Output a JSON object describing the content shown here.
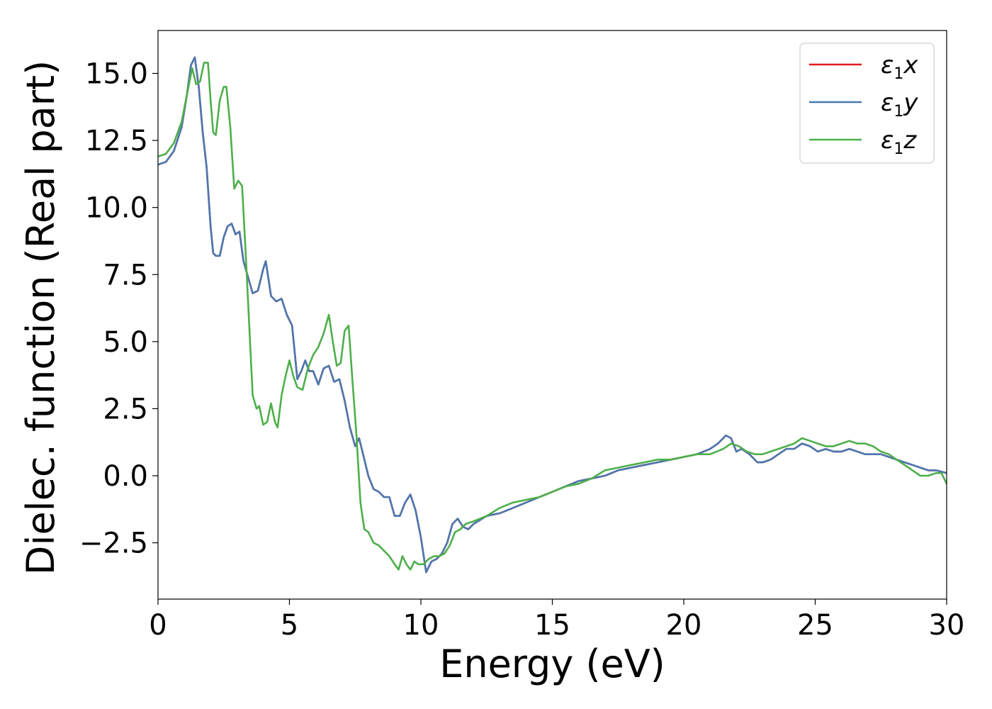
{
  "chart_data": {
    "type": "line",
    "title": "",
    "xlabel": "Energy (eV)",
    "ylabel": "Dielec. function (Real part)",
    "xlim": [
      0,
      30
    ],
    "ylim": [
      -4.6,
      16.6
    ],
    "xticks": [
      0,
      5,
      10,
      15,
      20,
      25,
      30
    ],
    "xtick_labels": [
      "0",
      "5",
      "10",
      "15",
      "20",
      "25",
      "30"
    ],
    "yticks": [
      -2.5,
      0.0,
      2.5,
      5.0,
      7.5,
      10.0,
      12.5,
      15.0
    ],
    "ytick_labels": [
      "−2.5",
      "0.0",
      "2.5",
      "5.0",
      "7.5",
      "10.0",
      "12.5",
      "15.0"
    ],
    "grid": false,
    "legend_position": "top-right",
    "series": [
      {
        "name": "ε₁x",
        "label_main": "ε",
        "label_sub": "1",
        "label_tail": "x",
        "color": "#e41a1c",
        "x": [
          0,
          0.3,
          0.6,
          0.9,
          1.1,
          1.25,
          1.4,
          1.55,
          1.7,
          1.85,
          2.0,
          2.1,
          2.2,
          2.35,
          2.5,
          2.65,
          2.8,
          2.95,
          3.1,
          3.25,
          3.4,
          3.6,
          3.8,
          4.0,
          4.1,
          4.3,
          4.5,
          4.7,
          4.9,
          5.1,
          5.3,
          5.45,
          5.6,
          5.75,
          5.9,
          6.1,
          6.3,
          6.5,
          6.7,
          6.9,
          7.1,
          7.3,
          7.5,
          7.65,
          7.8,
          8.0,
          8.2,
          8.4,
          8.6,
          8.8,
          9.0,
          9.2,
          9.4,
          9.6,
          9.8,
          10.0,
          10.2,
          10.4,
          10.6,
          10.8,
          11.0,
          11.2,
          11.4,
          11.6,
          11.8,
          12.0,
          12.5,
          13.0,
          13.5,
          14.0,
          14.5,
          15.0,
          15.5,
          16.0,
          16.5,
          17.0,
          17.5,
          18.0,
          18.5,
          19.0,
          19.5,
          20.0,
          20.5,
          21.0,
          21.3,
          21.6,
          21.8,
          22.0,
          22.2,
          22.5,
          22.8,
          23.0,
          23.3,
          23.6,
          23.9,
          24.2,
          24.5,
          24.8,
          25.1,
          25.4,
          25.7,
          26.0,
          26.3,
          26.6,
          26.9,
          27.2,
          27.5,
          27.8,
          28.1,
          28.4,
          28.7,
          29.0,
          29.3,
          29.6,
          30.0
        ],
        "y": [
          11.6,
          11.7,
          12.1,
          13.0,
          14.2,
          15.3,
          15.6,
          14.5,
          12.8,
          11.5,
          9.3,
          8.3,
          8.2,
          8.2,
          8.9,
          9.3,
          9.4,
          9.0,
          9.1,
          8.0,
          7.5,
          6.8,
          6.9,
          7.7,
          8.0,
          6.7,
          6.5,
          6.6,
          6.0,
          5.6,
          3.6,
          3.9,
          4.3,
          3.9,
          3.9,
          3.4,
          4.0,
          4.1,
          3.5,
          3.6,
          2.8,
          1.8,
          1.1,
          1.4,
          0.8,
          0.0,
          -0.5,
          -0.6,
          -0.8,
          -0.8,
          -1.5,
          -1.5,
          -1.0,
          -0.7,
          -1.3,
          -2.3,
          -3.6,
          -3.2,
          -3.1,
          -2.9,
          -2.5,
          -1.8,
          -1.6,
          -1.9,
          -2.0,
          -1.8,
          -1.5,
          -1.4,
          -1.2,
          -1.0,
          -0.8,
          -0.6,
          -0.4,
          -0.2,
          -0.1,
          0.0,
          0.2,
          0.3,
          0.4,
          0.5,
          0.6,
          0.7,
          0.8,
          1.0,
          1.2,
          1.5,
          1.4,
          0.9,
          1.0,
          0.8,
          0.5,
          0.5,
          0.6,
          0.8,
          1.0,
          1.0,
          1.2,
          1.1,
          0.9,
          1.0,
          0.9,
          0.9,
          1.0,
          0.9,
          0.8,
          0.8,
          0.8,
          0.7,
          0.6,
          0.5,
          0.4,
          0.3,
          0.2,
          0.2,
          0.1
        ]
      },
      {
        "name": "ε₁y",
        "label_main": "ε",
        "label_sub": "1",
        "label_tail": "y",
        "color": "#4a78b0",
        "x": [
          0,
          0.3,
          0.6,
          0.9,
          1.1,
          1.25,
          1.4,
          1.55,
          1.7,
          1.85,
          2.0,
          2.1,
          2.2,
          2.35,
          2.5,
          2.65,
          2.8,
          2.95,
          3.1,
          3.25,
          3.4,
          3.6,
          3.8,
          4.0,
          4.1,
          4.3,
          4.5,
          4.7,
          4.9,
          5.1,
          5.3,
          5.45,
          5.6,
          5.75,
          5.9,
          6.1,
          6.3,
          6.5,
          6.7,
          6.9,
          7.1,
          7.3,
          7.5,
          7.65,
          7.8,
          8.0,
          8.2,
          8.4,
          8.6,
          8.8,
          9.0,
          9.2,
          9.4,
          9.6,
          9.8,
          10.0,
          10.2,
          10.4,
          10.6,
          10.8,
          11.0,
          11.2,
          11.4,
          11.6,
          11.8,
          12.0,
          12.5,
          13.0,
          13.5,
          14.0,
          14.5,
          15.0,
          15.5,
          16.0,
          16.5,
          17.0,
          17.5,
          18.0,
          18.5,
          19.0,
          19.5,
          20.0,
          20.5,
          21.0,
          21.3,
          21.6,
          21.8,
          22.0,
          22.2,
          22.5,
          22.8,
          23.0,
          23.3,
          23.6,
          23.9,
          24.2,
          24.5,
          24.8,
          25.1,
          25.4,
          25.7,
          26.0,
          26.3,
          26.6,
          26.9,
          27.2,
          27.5,
          27.8,
          28.1,
          28.4,
          28.7,
          29.0,
          29.3,
          29.6,
          30.0
        ],
        "y": [
          11.6,
          11.7,
          12.1,
          13.0,
          14.2,
          15.3,
          15.6,
          14.5,
          12.8,
          11.5,
          9.3,
          8.3,
          8.2,
          8.2,
          8.9,
          9.3,
          9.4,
          9.0,
          9.1,
          8.0,
          7.5,
          6.8,
          6.9,
          7.7,
          8.0,
          6.7,
          6.5,
          6.6,
          6.0,
          5.6,
          3.6,
          3.9,
          4.3,
          3.9,
          3.9,
          3.4,
          4.0,
          4.1,
          3.5,
          3.6,
          2.8,
          1.8,
          1.1,
          1.4,
          0.8,
          0.0,
          -0.5,
          -0.6,
          -0.8,
          -0.8,
          -1.5,
          -1.5,
          -1.0,
          -0.7,
          -1.3,
          -2.3,
          -3.6,
          -3.2,
          -3.1,
          -2.9,
          -2.5,
          -1.8,
          -1.6,
          -1.9,
          -2.0,
          -1.8,
          -1.5,
          -1.4,
          -1.2,
          -1.0,
          -0.8,
          -0.6,
          -0.4,
          -0.2,
          -0.1,
          0.0,
          0.2,
          0.3,
          0.4,
          0.5,
          0.6,
          0.7,
          0.8,
          1.0,
          1.2,
          1.5,
          1.4,
          0.9,
          1.0,
          0.8,
          0.5,
          0.5,
          0.6,
          0.8,
          1.0,
          1.0,
          1.2,
          1.1,
          0.9,
          1.0,
          0.9,
          0.9,
          1.0,
          0.9,
          0.8,
          0.8,
          0.8,
          0.7,
          0.6,
          0.5,
          0.4,
          0.3,
          0.2,
          0.2,
          0.1
        ]
      },
      {
        "name": "ε₁z",
        "label_main": "ε",
        "label_sub": "1",
        "label_tail": "z",
        "color": "#4daf4a",
        "x": [
          0,
          0.3,
          0.6,
          0.9,
          1.1,
          1.3,
          1.45,
          1.6,
          1.75,
          1.9,
          2.0,
          2.1,
          2.2,
          2.35,
          2.5,
          2.6,
          2.75,
          2.9,
          3.05,
          3.2,
          3.35,
          3.45,
          3.6,
          3.75,
          3.85,
          4.0,
          4.15,
          4.3,
          4.45,
          4.55,
          4.7,
          4.85,
          5.0,
          5.15,
          5.3,
          5.5,
          5.7,
          5.9,
          6.1,
          6.3,
          6.5,
          6.65,
          6.8,
          6.95,
          7.1,
          7.25,
          7.4,
          7.55,
          7.7,
          7.85,
          8.0,
          8.2,
          8.4,
          8.6,
          8.8,
          9.0,
          9.15,
          9.3,
          9.45,
          9.6,
          9.75,
          9.9,
          10.1,
          10.3,
          10.5,
          10.7,
          10.9,
          11.1,
          11.3,
          11.5,
          11.7,
          12.0,
          12.5,
          13.0,
          13.5,
          14.0,
          14.5,
          15.0,
          15.5,
          16.0,
          16.5,
          17.0,
          17.5,
          18.0,
          18.5,
          19.0,
          19.5,
          20.0,
          20.5,
          21.0,
          21.5,
          21.8,
          22.1,
          22.4,
          22.7,
          23.0,
          23.3,
          23.6,
          23.9,
          24.2,
          24.5,
          24.8,
          25.1,
          25.4,
          25.7,
          26.0,
          26.3,
          26.6,
          26.9,
          27.2,
          27.5,
          27.8,
          28.1,
          28.4,
          28.7,
          29.0,
          29.3,
          29.6,
          29.8,
          30.0
        ],
        "y": [
          11.9,
          12.0,
          12.4,
          13.2,
          14.2,
          15.2,
          14.6,
          14.7,
          15.4,
          15.4,
          14.0,
          12.8,
          12.7,
          14.0,
          14.5,
          14.5,
          13.0,
          10.7,
          11.0,
          10.8,
          8.0,
          6.0,
          3.0,
          2.5,
          2.6,
          1.9,
          2.0,
          2.7,
          2.0,
          1.8,
          3.0,
          3.7,
          4.3,
          3.7,
          3.3,
          3.2,
          4.0,
          4.5,
          4.8,
          5.3,
          6.0,
          5.0,
          4.1,
          4.2,
          5.4,
          5.6,
          3.5,
          1.5,
          -1.0,
          -2.0,
          -2.1,
          -2.5,
          -2.6,
          -2.8,
          -3.0,
          -3.3,
          -3.5,
          -3.0,
          -3.3,
          -3.5,
          -3.2,
          -3.3,
          -3.3,
          -3.1,
          -3.0,
          -3.0,
          -2.9,
          -2.6,
          -2.1,
          -2.0,
          -1.8,
          -1.7,
          -1.5,
          -1.2,
          -1.0,
          -0.9,
          -0.8,
          -0.6,
          -0.4,
          -0.3,
          -0.1,
          0.2,
          0.3,
          0.4,
          0.5,
          0.6,
          0.6,
          0.7,
          0.8,
          0.8,
          1.0,
          1.2,
          1.1,
          0.9,
          0.8,
          0.8,
          0.9,
          1.0,
          1.1,
          1.2,
          1.4,
          1.3,
          1.2,
          1.1,
          1.1,
          1.2,
          1.3,
          1.2,
          1.2,
          1.1,
          0.9,
          0.8,
          0.6,
          0.4,
          0.2,
          0.0,
          0.0,
          0.1,
          0.1,
          -0.3
        ]
      }
    ]
  }
}
